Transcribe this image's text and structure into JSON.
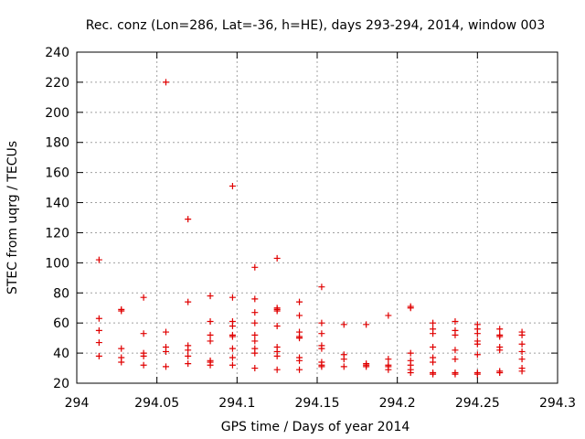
{
  "chart_data": {
    "type": "scatter",
    "title": "Rec. conz (Lon=286, Lat=-36, h=HE), days 293-294, 2014, window 003",
    "xlabel": "GPS time / Days of year 2014",
    "ylabel": "STEC from uqrg / TECUs",
    "xlim": [
      294,
      294.3
    ],
    "ylim": [
      20,
      240
    ],
    "xticks": [
      "294",
      "294.05",
      "294.1",
      "294.15",
      "294.2",
      "294.25",
      "294.3"
    ],
    "yticks": [
      "20",
      "40",
      "60",
      "80",
      "100",
      "120",
      "140",
      "160",
      "180",
      "200",
      "220",
      "240"
    ],
    "grid": true,
    "marker": "+",
    "color": "#e00000",
    "series": [
      {
        "name": "STEC",
        "x": [
          294.0139,
          294.0139,
          294.0139,
          294.0139,
          294.0139,
          294.0278,
          294.0278,
          294.0278,
          294.0278,
          294.0278,
          294.0417,
          294.0417,
          294.0417,
          294.0417,
          294.0417,
          294.0556,
          294.0556,
          294.0556,
          294.0556,
          294.0556,
          294.0694,
          294.0694,
          294.0694,
          294.0694,
          294.0694,
          294.0694,
          294.0833,
          294.0833,
          294.0833,
          294.0833,
          294.0833,
          294.0833,
          294.0833,
          294.0972,
          294.0972,
          294.0972,
          294.0972,
          294.0972,
          294.0972,
          294.0972,
          294.0972,
          294.0972,
          294.1111,
          294.1111,
          294.1111,
          294.1111,
          294.1111,
          294.1111,
          294.1111,
          294.1111,
          294.1111,
          294.125,
          294.125,
          294.125,
          294.125,
          294.125,
          294.125,
          294.125,
          294.125,
          294.125,
          294.1389,
          294.1389,
          294.1389,
          294.1389,
          294.1389,
          294.1389,
          294.1389,
          294.1389,
          294.1528,
          294.1528,
          294.1528,
          294.1528,
          294.1528,
          294.1528,
          294.1528,
          294.1528,
          294.1667,
          294.1667,
          294.1667,
          294.1667,
          294.1806,
          294.1806,
          294.1806,
          294.1806,
          294.1944,
          294.1944,
          294.1944,
          294.1944,
          294.1944,
          294.2083,
          294.2083,
          294.2083,
          294.2083,
          294.2083,
          294.2083,
          294.2083,
          294.2222,
          294.2222,
          294.2222,
          294.2222,
          294.2222,
          294.2222,
          294.2222,
          294.2222,
          294.2361,
          294.2361,
          294.2361,
          294.2361,
          294.2361,
          294.2361,
          294.2361,
          294.25,
          294.25,
          294.25,
          294.25,
          294.25,
          294.25,
          294.25,
          294.25,
          294.2639,
          294.2639,
          294.2639,
          294.2639,
          294.2639,
          294.2639,
          294.2639,
          294.2778,
          294.2778,
          294.2778,
          294.2778,
          294.2778,
          294.2778,
          294.2778
        ],
        "y": [
          102,
          63,
          55,
          47,
          38,
          69,
          68,
          43,
          37,
          34,
          77,
          53,
          40,
          38,
          32,
          220,
          54,
          44,
          41,
          31,
          129,
          74,
          45,
          42,
          38,
          33,
          78,
          61,
          52,
          48,
          35,
          34,
          32,
          151,
          77,
          61,
          58,
          52,
          51,
          43,
          37,
          32,
          97,
          76,
          67,
          60,
          52,
          48,
          43,
          40,
          30,
          103,
          70,
          69,
          68,
          58,
          44,
          41,
          38,
          29,
          74,
          65,
          54,
          51,
          50,
          37,
          35,
          29,
          84,
          60,
          53,
          45,
          43,
          34,
          32,
          31,
          59,
          39,
          36,
          31,
          59,
          33,
          32,
          31,
          65,
          36,
          32,
          31,
          29,
          71,
          70,
          40,
          35,
          32,
          29,
          27,
          60,
          56,
          53,
          44,
          37,
          34,
          27,
          26,
          61,
          55,
          52,
          42,
          36,
          27,
          26,
          59,
          56,
          53,
          48,
          46,
          39,
          27,
          26,
          56,
          52,
          51,
          44,
          42,
          28,
          27,
          54,
          52,
          46,
          41,
          36,
          30,
          28
        ]
      }
    ]
  }
}
